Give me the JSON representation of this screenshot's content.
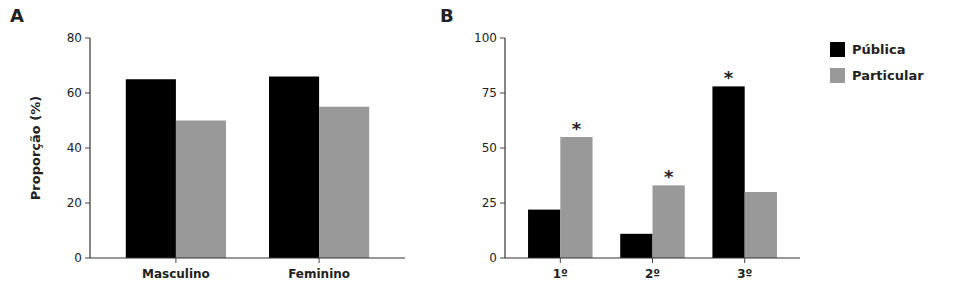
{
  "chart_data": [
    {
      "type": "bar",
      "title": "A",
      "categories": [
        "Masculino",
        "Feminino"
      ],
      "series": [
        {
          "name": "Pública",
          "color": "#000000",
          "values": [
            65,
            66
          ]
        },
        {
          "name": "Particular",
          "color": "#999999",
          "values": [
            50,
            55
          ]
        }
      ],
      "ylabel": "Proporção (%)",
      "ylim": [
        0,
        80
      ],
      "yticks": [
        0,
        20,
        40,
        60,
        80
      ]
    },
    {
      "type": "bar",
      "title": "B",
      "categories": [
        "1º",
        "2º",
        "3º"
      ],
      "series": [
        {
          "name": "Pública",
          "color": "#000000",
          "values": [
            22,
            11,
            78
          ]
        },
        {
          "name": "Particular",
          "color": "#999999",
          "values": [
            55,
            33,
            30
          ]
        }
      ],
      "ylim": [
        0,
        100
      ],
      "yticks": [
        0,
        25,
        50,
        75,
        100
      ],
      "legend": "right",
      "annotations": [
        {
          "text": "*",
          "x": "1º",
          "series": "Particular"
        },
        {
          "text": "*",
          "x": "2º",
          "series": "Particular"
        },
        {
          "text": "*",
          "x": "3º",
          "series": "Pública"
        }
      ]
    }
  ]
}
